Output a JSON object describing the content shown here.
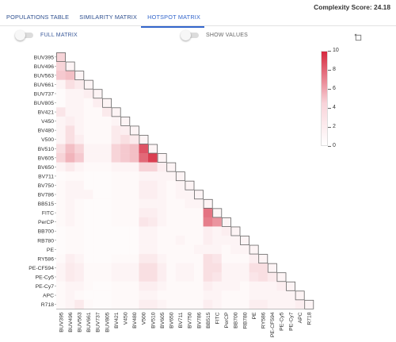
{
  "tabs": [
    "POPULATIONS TABLE",
    "SIMILARITY MATRIX",
    "HOTSPOT MATRIX"
  ],
  "active_tab": 2,
  "complexity_label": "Complexity Score: 24.18",
  "toggles": {
    "full_matrix": "FULL MATRIX",
    "show_values": "SHOW VALUES"
  },
  "icons": {
    "refresh": "refresh-icon"
  },
  "colors": {
    "accent": "#3366cc",
    "heat_max": "#d6283e",
    "heat_min": "#ffffff"
  },
  "chart_data": {
    "type": "heatmap",
    "markers": [
      "BUV395",
      "BUV496",
      "BUV563",
      "BUV661",
      "BUV737",
      "BUV805",
      "BV421",
      "V450",
      "BV480",
      "V500",
      "BV510",
      "BV605",
      "BV650",
      "BV711",
      "BV750",
      "BV786",
      "BB515",
      "FITC",
      "PerCP",
      "BB700",
      "RB780",
      "PE",
      "RY586",
      "PE-CF594",
      "PE-Cy5",
      "PE-Cy7",
      "APC",
      "R718"
    ],
    "colorbar": {
      "min": 0,
      "max": 10,
      "ticks": [
        0,
        2,
        4,
        6,
        8,
        10
      ]
    },
    "lower_triangle_values": [
      [
        2
      ],
      [
        2.5,
        3
      ],
      [
        0.5,
        1.5,
        1
      ],
      [
        0.2,
        0.5,
        0.5,
        0.8
      ],
      [
        0.2,
        0.5,
        0.5,
        0.3,
        0.8
      ],
      [
        1.2,
        0.5,
        0.5,
        0.3,
        0.3,
        1
      ],
      [
        0.5,
        0.8,
        0.5,
        0.3,
        0.3,
        0.3,
        0.5
      ],
      [
        0.5,
        1.5,
        0.5,
        0.3,
        0.3,
        0.3,
        1,
        0.8
      ],
      [
        0.5,
        1.5,
        0.8,
        0.3,
        0.3,
        0.3,
        1,
        1.5,
        1
      ],
      [
        1.5,
        3,
        2,
        0.5,
        0.5,
        0.5,
        2,
        2.5,
        3,
        8
      ],
      [
        2,
        3.5,
        2.5,
        0.5,
        0.5,
        0.5,
        2,
        2.5,
        3,
        7,
        9
      ],
      [
        0.5,
        1,
        0.5,
        0.3,
        0.3,
        0.3,
        0.5,
        0.5,
        0.5,
        2,
        2,
        0.8
      ],
      [
        0.2,
        0.3,
        0.3,
        0.2,
        0.2,
        0.2,
        0.3,
        0.3,
        0.3,
        0.5,
        0.5,
        0.5,
        0.5
      ],
      [
        0.3,
        0.5,
        0.5,
        0.2,
        0.2,
        0.2,
        0.3,
        0.3,
        0.3,
        0.8,
        0.8,
        0.5,
        0.3,
        0.5
      ],
      [
        0.3,
        0.5,
        0.5,
        0.5,
        0.2,
        0.2,
        0.3,
        0.3,
        0.3,
        0.8,
        0.8,
        0.5,
        0.3,
        0.5,
        0.5
      ],
      [
        0.3,
        0.5,
        0.3,
        0.2,
        0.2,
        0.2,
        0.3,
        0.3,
        0.3,
        0.5,
        0.5,
        0.5,
        0.3,
        0.3,
        0.5,
        0.5
      ],
      [
        0.3,
        0.5,
        0.3,
        0.2,
        0.2,
        0.2,
        0.3,
        0.3,
        0.3,
        0.8,
        0.8,
        0.5,
        0.3,
        0.3,
        0.3,
        0.3,
        6.5
      ],
      [
        0.3,
        0.5,
        0.3,
        0.2,
        0.2,
        0.2,
        0.3,
        0.3,
        0.3,
        1.2,
        1,
        0.5,
        0.3,
        0.3,
        0.3,
        0.3,
        6,
        5
      ],
      [
        0.2,
        0.3,
        0.3,
        0.2,
        0.2,
        0.2,
        0.2,
        0.2,
        0.2,
        0.5,
        0.5,
        0.3,
        0.3,
        0.3,
        0.3,
        0.3,
        0.8,
        0.5,
        0.8
      ],
      [
        0.2,
        0.3,
        0.3,
        0.2,
        0.2,
        0.2,
        0.2,
        0.2,
        0.2,
        0.5,
        0.5,
        0.3,
        0.3,
        0.5,
        0.3,
        0.3,
        0.8,
        0.5,
        0.5,
        0.5
      ],
      [
        0.2,
        0.3,
        0.3,
        0.2,
        0.2,
        0.2,
        0.2,
        0.2,
        0.2,
        0.5,
        0.5,
        0.3,
        0.3,
        0.3,
        0.3,
        0.5,
        0.5,
        0.5,
        0.3,
        0.5,
        0.5
      ],
      [
        0.3,
        0.8,
        0.5,
        0.2,
        0.2,
        0.2,
        0.3,
        0.3,
        0.3,
        1,
        1,
        0.5,
        0.3,
        0.3,
        0.3,
        0.3,
        1.5,
        1.2,
        0.3,
        0.3,
        0.3,
        0.8
      ],
      [
        0.5,
        1,
        0.8,
        0.3,
        0.3,
        0.3,
        0.5,
        0.5,
        0.5,
        1.5,
        1.5,
        0.8,
        0.3,
        0.5,
        0.5,
        0.3,
        1.5,
        1.5,
        0.5,
        0.5,
        0.5,
        1.5,
        1.5
      ],
      [
        0.5,
        1,
        0.8,
        0.3,
        0.3,
        0.3,
        0.5,
        0.5,
        0.5,
        1.5,
        1.5,
        0.8,
        0.3,
        0.5,
        0.5,
        0.3,
        1.5,
        1.2,
        0.5,
        0.5,
        0.5,
        1.2,
        1.5,
        1
      ],
      [
        0.3,
        0.5,
        0.5,
        0.3,
        0.2,
        0.2,
        0.3,
        0.3,
        0.3,
        0.8,
        0.8,
        0.5,
        0.3,
        0.3,
        0.3,
        0.3,
        0.8,
        0.5,
        0.5,
        0.5,
        0.3,
        0.5,
        0.5,
        0.5,
        0.8
      ],
      [
        0.3,
        0.5,
        0.3,
        0.2,
        0.2,
        0.2,
        0.3,
        0.3,
        0.3,
        0.5,
        0.5,
        0.3,
        0.3,
        0.3,
        0.3,
        0.3,
        0.5,
        0.5,
        0.3,
        0.3,
        0.3,
        0.5,
        0.5,
        0.5,
        0.5,
        0.5
      ],
      [
        0.3,
        0.5,
        1,
        0.3,
        0.2,
        0.2,
        0.3,
        0.3,
        0.3,
        0.8,
        0.8,
        0.5,
        0.3,
        0.3,
        0.3,
        0.3,
        0.8,
        0.5,
        0.3,
        0.3,
        0.3,
        0.8,
        0.8,
        0.5,
        0.5,
        0.5,
        0.8
      ],
      [
        0.2,
        0.3,
        0.3,
        1,
        0.2,
        0.2,
        0.2,
        0.2,
        0.2,
        0.5,
        0.5,
        0.3,
        0.3,
        0.3,
        0.3,
        0.3,
        0.5,
        0.3,
        0.3,
        0.3,
        0.3,
        0.5,
        0.5,
        0.3,
        0.3,
        0.3,
        0.5,
        0.5
      ]
    ]
  }
}
